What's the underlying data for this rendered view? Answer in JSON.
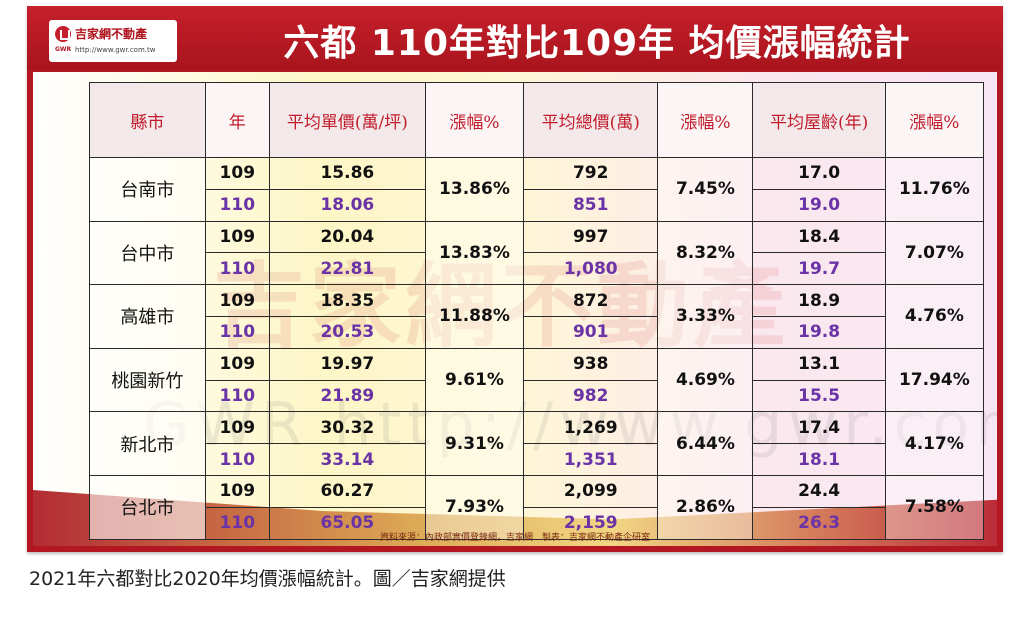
{
  "header": {
    "title": "六都 110年對比109年 均價漲幅統計",
    "logo_name": "吉家網不動產",
    "logo_brand": "GWR",
    "logo_url": "http://www.gwr.com.tw"
  },
  "watermark": {
    "text": "吉家網不動產",
    "url": "GWR http://www.gwr.com.tw"
  },
  "table": {
    "headers": [
      "縣市",
      "年",
      "平均單價(萬/坪)",
      "漲幅%",
      "平均總價(萬)",
      "漲幅%",
      "平均屋齡(年)",
      "漲幅%"
    ],
    "rows": [
      {
        "city": "台南市",
        "year_a": "109",
        "year_b": "110",
        "unit_a": "15.86",
        "unit_b": "18.06",
        "unit_pct": "13.86%",
        "total_a": "792",
        "total_b": "851",
        "total_pct": "7.45%",
        "age_a": "17.0",
        "age_b": "19.0",
        "age_pct": "11.76%"
      },
      {
        "city": "台中市",
        "year_a": "109",
        "year_b": "110",
        "unit_a": "20.04",
        "unit_b": "22.81",
        "unit_pct": "13.83%",
        "total_a": "997",
        "total_b": "1,080",
        "total_pct": "8.32%",
        "age_a": "18.4",
        "age_b": "19.7",
        "age_pct": "7.07%"
      },
      {
        "city": "高雄市",
        "year_a": "109",
        "year_b": "110",
        "unit_a": "18.35",
        "unit_b": "20.53",
        "unit_pct": "11.88%",
        "total_a": "872",
        "total_b": "901",
        "total_pct": "3.33%",
        "age_a": "18.9",
        "age_b": "19.8",
        "age_pct": "4.76%"
      },
      {
        "city": "桃園新竹",
        "year_a": "109",
        "year_b": "110",
        "unit_a": "19.97",
        "unit_b": "21.89",
        "unit_pct": "9.61%",
        "total_a": "938",
        "total_b": "982",
        "total_pct": "4.69%",
        "age_a": "13.1",
        "age_b": "15.5",
        "age_pct": "17.94%"
      },
      {
        "city": "新北市",
        "year_a": "109",
        "year_b": "110",
        "unit_a": "30.32",
        "unit_b": "33.14",
        "unit_pct": "9.31%",
        "total_a": "1,269",
        "total_b": "1,351",
        "total_pct": "6.44%",
        "age_a": "17.4",
        "age_b": "18.1",
        "age_pct": "4.17%"
      },
      {
        "city": "台北市",
        "year_a": "109",
        "year_b": "110",
        "unit_a": "60.27",
        "unit_b": "65.05",
        "unit_pct": "7.93%",
        "total_a": "2,099",
        "total_b": "2,159",
        "total_pct": "2.86%",
        "age_a": "24.4",
        "age_b": "26.3",
        "age_pct": "7.58%"
      }
    ]
  },
  "source_note": "資料來源：內政部實價登錄網，吉家網　製表：吉家網不動產企研室",
  "caption": "2021年六都對比2020年均價漲幅統計。圖／吉家網提供",
  "colors": {
    "header_red": "#b31722",
    "header_text": "#c11b2b",
    "year_110_purple": "#6a33a6"
  }
}
